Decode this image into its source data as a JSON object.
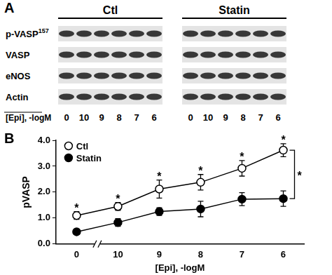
{
  "panel_a": {
    "label": "A",
    "groups": [
      "Ctl",
      "Statin"
    ],
    "rows": [
      {
        "label": "p-VASP",
        "superscript": "157"
      },
      {
        "label": "VASP"
      },
      {
        "label": "eNOS"
      },
      {
        "label": "Actin"
      }
    ],
    "lane_axis_label": "[Epi], -logM",
    "lanes": [
      "0",
      "10",
      "9",
      "8",
      "7",
      "6"
    ]
  },
  "chart_data": {
    "label": "B",
    "type": "line",
    "x_label": "[Epi], -logM",
    "y_label": "pVASP",
    "categories": [
      "0",
      "10",
      "9",
      "8",
      "7",
      "6"
    ],
    "series": [
      {
        "name": "Ctl",
        "color": "#000000",
        "marker": "open_circle",
        "values": [
          1.1,
          1.45,
          2.12,
          2.38,
          2.92,
          3.62
        ],
        "errors": [
          0.15,
          0.15,
          0.35,
          0.3,
          0.3,
          0.25
        ]
      },
      {
        "name": "Statin",
        "color": "#000000",
        "marker": "filled_circle",
        "values": [
          0.47,
          0.83,
          1.25,
          1.35,
          1.73,
          1.75
        ],
        "errors": [
          0.1,
          0.15,
          0.15,
          0.3,
          0.25,
          0.3
        ]
      }
    ],
    "ylim": [
      0,
      4
    ],
    "yticks": [
      {
        "value": 0,
        "label": "0.0"
      },
      {
        "value": 1,
        "label": "1.0"
      },
      {
        "value": 2,
        "label": "2.0"
      },
      {
        "value": 3,
        "label": "3.0"
      },
      {
        "value": 4,
        "label": "4.0"
      }
    ],
    "legend": "upper left",
    "grid": false,
    "annotations": [
      {
        "text": "*",
        "series": "Ctl",
        "category": "0"
      },
      {
        "text": "*",
        "series": "Ctl",
        "category": "10"
      },
      {
        "text": "*",
        "series": "Ctl",
        "category": "9"
      },
      {
        "text": "*",
        "series": "Ctl",
        "category": "8"
      },
      {
        "text": "*",
        "series": "Ctl",
        "category": "7"
      },
      {
        "text": "*",
        "series": "Ctl",
        "category": "6"
      },
      {
        "text": "*",
        "between": [
          "Ctl",
          "Statin"
        ],
        "category": "6"
      }
    ]
  }
}
